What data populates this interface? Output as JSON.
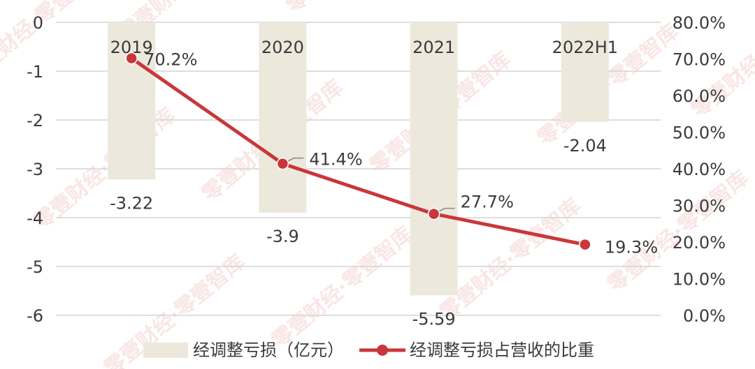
{
  "watermark": "零壹财经·零壹智库",
  "chart_data": {
    "type": "bar+line",
    "categories": [
      "2019",
      "2020",
      "2021",
      "2022H1"
    ],
    "series": [
      {
        "name": "经调整亏损（亿元）",
        "type": "bar",
        "axis": "left",
        "color": "#ece9dc",
        "values": [
          -3.22,
          -3.9,
          -5.59,
          -2.04
        ],
        "labels": [
          "-3.22",
          "-3.9",
          "-5.59",
          "-2.04"
        ]
      },
      {
        "name": "经调整亏损占营收的比重",
        "type": "line",
        "axis": "right",
        "color": "#c9373a",
        "values": [
          70.2,
          41.4,
          27.7,
          19.3
        ],
        "labels": [
          "70.2%",
          "41.4%",
          "27.7%",
          "19.3%"
        ]
      }
    ],
    "y_left": {
      "min": -6,
      "max": 0,
      "ticks": [
        "0",
        "-1",
        "-2",
        "-3",
        "-4",
        "-5",
        "-6"
      ]
    },
    "y_right": {
      "min": 0,
      "max": 80,
      "ticks": [
        "80.0%",
        "70.0%",
        "60.0%",
        "50.0%",
        "40.0%",
        "30.0%",
        "20.0%",
        "10.0%",
        "0.0%"
      ]
    },
    "grid": true,
    "legend_position": "bottom"
  }
}
